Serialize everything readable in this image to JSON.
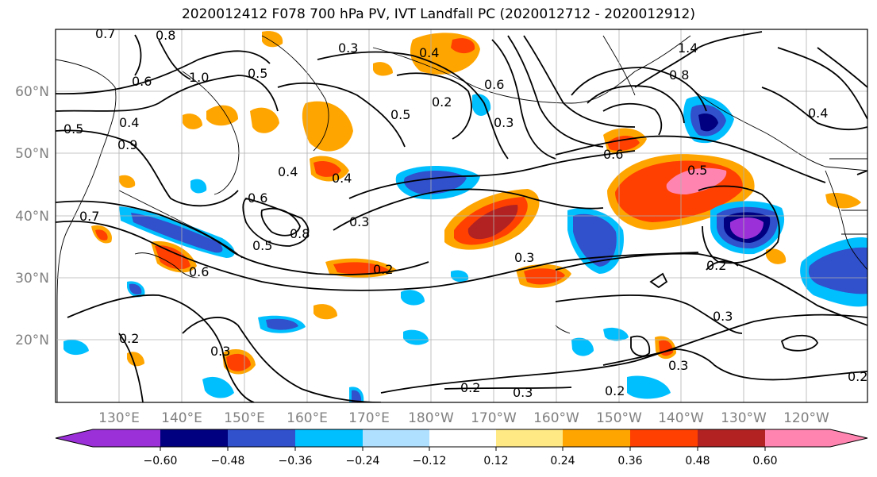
{
  "title": "2020012412 F078 700 hPa PV, IVT Landfall PC (2020012712 - 2020012912)",
  "map": {
    "lon_labels": [
      "130°E",
      "140°E",
      "150°E",
      "160°E",
      "170°E",
      "180°W",
      "170°W",
      "160°W",
      "150°W",
      "140°W",
      "130°W",
      "120°W"
    ],
    "lat_labels": [
      "60°N",
      "50°N",
      "40°N",
      "30°N",
      "20°N"
    ],
    "contour_labels": [
      "0.7",
      "0.8",
      "0.3",
      "0.4",
      "1.4",
      "0.6",
      "1.0",
      "0.5",
      "0.2",
      "0.6",
      "0.8",
      "0.5",
      "0.4",
      "0.9",
      "0.3",
      "0.6",
      "0.4",
      "0.4",
      "0.5",
      "0.3",
      "0.6",
      "0.5",
      "0.7",
      "0.8",
      "0.6",
      "0.5",
      "0.3",
      "0.2",
      "0.3",
      "0.2",
      "0.3",
      "0.2",
      "0.3",
      "0.2",
      "0.2",
      "0.3",
      "0.2",
      "0.4"
    ]
  },
  "colorbar": {
    "ticks": [
      "−0.60",
      "−0.48",
      "−0.36",
      "−0.24",
      "−0.12",
      "0.12",
      "0.24",
      "0.36",
      "0.48",
      "0.60"
    ],
    "colors": [
      "#9b30d9",
      "#000080",
      "#3050cc",
      "#00bfff",
      "#b0e0ff",
      "#ffffff",
      "#ffe985",
      "#ffa500",
      "#ff4000",
      "#b22222",
      "#ff85b0"
    ]
  }
}
